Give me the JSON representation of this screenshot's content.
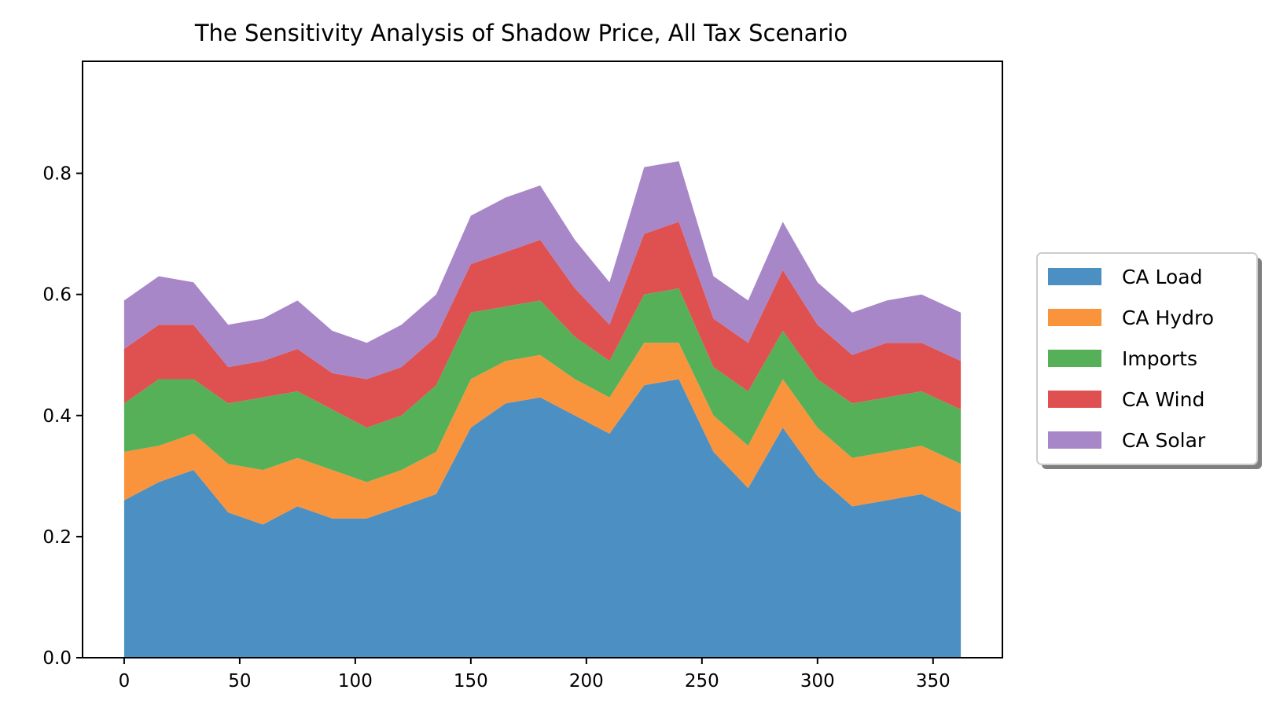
{
  "chart_data": {
    "type": "area",
    "stacked": true,
    "title": "The Sensitivity Analysis of Shadow Price, All Tax Scenario",
    "xlabel": "",
    "ylabel": "",
    "xlim": [
      -18,
      380
    ],
    "ylim": [
      0,
      0.985
    ],
    "x_ticks": [
      0,
      50,
      100,
      150,
      200,
      250,
      300,
      350
    ],
    "x_tick_labels": [
      "0",
      "50",
      "100",
      "150",
      "200",
      "250",
      "300",
      "350"
    ],
    "y_ticks": [
      0.0,
      0.2,
      0.4,
      0.6,
      0.8
    ],
    "y_tick_labels": [
      "0.0",
      "0.2",
      "0.4",
      "0.6",
      "0.8"
    ],
    "grid": false,
    "legend_position": "outside-right",
    "x": [
      0,
      15,
      30,
      45,
      60,
      75,
      90,
      105,
      120,
      135,
      150,
      165,
      180,
      195,
      210,
      225,
      240,
      255,
      270,
      285,
      300,
      315,
      330,
      345,
      362
    ],
    "series": [
      {
        "name": "CA Load",
        "color": "#4c8fc2",
        "values": [
          0.26,
          0.29,
          0.31,
          0.24,
          0.22,
          0.25,
          0.23,
          0.23,
          0.25,
          0.27,
          0.38,
          0.42,
          0.43,
          0.4,
          0.37,
          0.45,
          0.46,
          0.34,
          0.28,
          0.38,
          0.3,
          0.25,
          0.26,
          0.27,
          0.24
        ]
      },
      {
        "name": "CA Hydro",
        "color": "#f9943c",
        "values": [
          0.08,
          0.06,
          0.06,
          0.08,
          0.09,
          0.08,
          0.08,
          0.06,
          0.06,
          0.07,
          0.08,
          0.07,
          0.07,
          0.06,
          0.06,
          0.07,
          0.06,
          0.06,
          0.07,
          0.08,
          0.08,
          0.08,
          0.08,
          0.08,
          0.08
        ]
      },
      {
        "name": "Imports",
        "color": "#56b057",
        "values": [
          0.08,
          0.11,
          0.09,
          0.1,
          0.12,
          0.11,
          0.1,
          0.09,
          0.09,
          0.11,
          0.11,
          0.09,
          0.09,
          0.07,
          0.06,
          0.08,
          0.09,
          0.08,
          0.09,
          0.08,
          0.08,
          0.09,
          0.09,
          0.09,
          0.09
        ]
      },
      {
        "name": "CA Wind",
        "color": "#df5150",
        "values": [
          0.09,
          0.09,
          0.09,
          0.06,
          0.06,
          0.07,
          0.06,
          0.08,
          0.08,
          0.08,
          0.08,
          0.09,
          0.1,
          0.08,
          0.06,
          0.1,
          0.11,
          0.08,
          0.08,
          0.1,
          0.09,
          0.08,
          0.09,
          0.08,
          0.08
        ]
      },
      {
        "name": "CA Solar",
        "color": "#a887c8",
        "values": [
          0.08,
          0.08,
          0.07,
          0.07,
          0.07,
          0.08,
          0.07,
          0.06,
          0.07,
          0.07,
          0.08,
          0.09,
          0.09,
          0.08,
          0.07,
          0.11,
          0.1,
          0.07,
          0.07,
          0.08,
          0.07,
          0.07,
          0.07,
          0.08,
          0.08
        ]
      }
    ]
  }
}
